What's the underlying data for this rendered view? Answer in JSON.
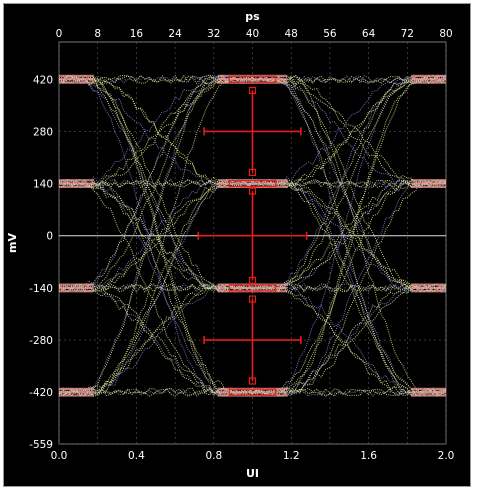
{
  "chart_data": {
    "type": "eye-diagram",
    "title": "",
    "top_axis": {
      "label": "ps",
      "ticks": [
        0,
        8,
        16,
        24,
        32,
        40,
        48,
        56,
        64,
        72,
        80
      ],
      "range": [
        0,
        80
      ]
    },
    "bottom_axis": {
      "label": "UI",
      "ticks": [
        "0.0",
        "0.4",
        "0.8",
        "1.2",
        "1.6",
        "2.0"
      ],
      "range": [
        0,
        2
      ]
    },
    "y_axis": {
      "label": "mV",
      "ticks": [
        420,
        280,
        140,
        0,
        -140,
        -280,
        -420,
        -559
      ],
      "range": [
        -559,
        520
      ]
    },
    "levels_mv": [
      -420,
      -140,
      140,
      420
    ],
    "eye_masks": [
      {
        "center_ui": 1.0,
        "center_mv": 280,
        "half_width_ui": 0.25,
        "half_height_mv": 110
      },
      {
        "center_ui": 1.0,
        "center_mv": 0,
        "half_width_ui": 0.28,
        "half_height_mv": 120
      },
      {
        "center_ui": 1.0,
        "center_mv": -280,
        "half_width_ui": 0.25,
        "half_height_mv": 110
      }
    ],
    "grid": true,
    "zero_line": true,
    "colors": {
      "trace_primary": "#e3e891",
      "trace_secondary": "#9494f5",
      "trace_dense": "#f59a9a",
      "mask": "#e81a1a",
      "grid": "#5a5a5a",
      "background": "#000000"
    }
  }
}
